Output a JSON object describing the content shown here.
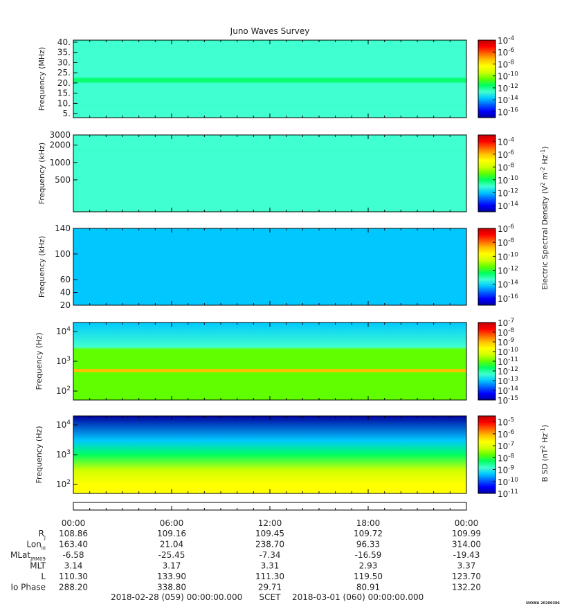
{
  "title": "Juno Waves Survey",
  "footer": {
    "start_time": "2018-02-28 (059) 00:00:00.000",
    "scet": "SCET",
    "end_time": "2018-03-01 (060) 00:00:00.000",
    "stamp": "UIOWA 20200306"
  },
  "colors": {
    "colormap": [
      "#0000a0",
      "#0000ff",
      "#0060ff",
      "#00c8ff",
      "#40ffd0",
      "#00ff60",
      "#60ff00",
      "#d0ff00",
      "#ffff00",
      "#ffc000",
      "#ff6000",
      "#ff0000",
      "#c00000"
    ],
    "panel_background": "#36d9c9"
  },
  "chart_data": [
    {
      "type": "heatmap",
      "panel": "E-field HFR high band",
      "ylabel": "Frequency (MHz)",
      "yticks": [
        "40.",
        "35.",
        "30.",
        "25.",
        "20.",
        "15.",
        "10.",
        "5."
      ],
      "ylim": [
        3,
        41
      ],
      "colorbar": {
        "ticks": [
          "10^-4",
          "10^-6",
          "10^-8",
          "10^-10",
          "10^-12",
          "10^-14",
          "10^-16"
        ],
        "range": [
          -17,
          -4
        ]
      },
      "dominant_log10_value": -12.5,
      "bands": [
        {
          "frequency": 21.5,
          "log10_value": -11.2
        },
        {
          "frequency": 8.7,
          "log10_value": -12.8
        }
      ]
    },
    {
      "type": "heatmap",
      "panel": "E-field HFR low band",
      "ylabel": "Frequency (kHz)",
      "yticks": [
        "3000",
        "2000",
        "1000",
        "500"
      ],
      "ylim": [
        140,
        3000
      ],
      "yscale": "log",
      "colorbar": {
        "ticks": [
          "10^-4",
          "10^-6",
          "10^-8",
          "10^-10",
          "10^-12",
          "10^-14"
        ],
        "range": [
          -15,
          -3
        ]
      },
      "dominant_log10_value": -11.2,
      "bands": [
        {
          "frequency": 1700,
          "log10_value": -10.6
        }
      ]
    },
    {
      "type": "heatmap",
      "panel": "E-field LFR high",
      "ylabel": "Frequency (kHz)",
      "yticks": [
        "140",
        "100",
        "60",
        "40",
        "20"
      ],
      "ylim": [
        20,
        140
      ],
      "colorbar": {
        "ticks": [
          "10^-6",
          "10^-8",
          "10^-10",
          "10^-12",
          "10^-14",
          "10^-16"
        ],
        "range": [
          -17,
          -6
        ]
      },
      "dominant_log10_value": -14.5,
      "colorbar_label": "Electric Spectral Density (V^2 m^-2 Hz^-1)"
    },
    {
      "type": "heatmap",
      "panel": "E-field LFR low",
      "ylabel": "Frequency (Hz)",
      "yticks": [
        "10^4",
        "10^3",
        "10^2"
      ],
      "ylim": [
        50,
        20000
      ],
      "yscale": "log",
      "colorbar": {
        "ticks": [
          "10^-7",
          "10^-8",
          "10^-9",
          "10^-10",
          "10^-11",
          "10^-12",
          "10^-13",
          "10^-14",
          "10^-15"
        ],
        "range": [
          -15,
          -7
        ]
      },
      "features": [
        {
          "name": "upper",
          "frequency_range": [
            3000,
            20000
          ],
          "log10_value": -13.2
        },
        {
          "name": "lower",
          "frequency_range": [
            50,
            3000
          ],
          "log10_value": -11.0
        },
        {
          "name": "band",
          "frequency": 500,
          "log10_value": -9.0
        }
      ]
    },
    {
      "type": "heatmap",
      "panel": "B-field",
      "ylabel": "Frequency (Hz)",
      "yticks": [
        "10^4",
        "10^3",
        "10^2"
      ],
      "ylim": [
        50,
        20000
      ],
      "yscale": "log",
      "colorbar": {
        "ticks": [
          "10^-5",
          "10^-6",
          "10^-7",
          "10^-8",
          "10^-9",
          "10^-10",
          "10^-11"
        ],
        "range": [
          -11,
          -4.5
        ]
      },
      "colorbar_label": "B SD (nT^2 Hz^-1)",
      "profile": [
        {
          "frequency": 20000,
          "log10_value": -10.8
        },
        {
          "frequency": 3000,
          "log10_value": -9.5
        },
        {
          "frequency": 1000,
          "log10_value": -8.3
        },
        {
          "frequency": 300,
          "log10_value": -7.4
        },
        {
          "frequency": 100,
          "log10_value": -6.4
        }
      ]
    }
  ],
  "time_axis": {
    "labels": [
      "00:00",
      "06:00",
      "12:00",
      "18:00",
      "00:00"
    ]
  },
  "ephemeris": [
    {
      "label": "R",
      "sub": "J",
      "values": [
        "108.86",
        "109.16",
        "109.45",
        "109.72",
        "109.99"
      ]
    },
    {
      "label": "Lon",
      "sub": "III",
      "values": [
        "163.40",
        "21.04",
        "238.70",
        "96.33",
        "314.00"
      ]
    },
    {
      "label": "MLat",
      "sub": "JRM09",
      "values": [
        "-6.58",
        "-25.45",
        "-7.34",
        "-16.59",
        "-19.43"
      ]
    },
    {
      "label": "MLT",
      "sub": "",
      "values": [
        "3.14",
        "3.17",
        "3.31",
        "2.93",
        "3.37"
      ]
    },
    {
      "label": "L",
      "sub": "",
      "values": [
        "110.30",
        "133.90",
        "111.30",
        "119.50",
        "123.70"
      ]
    },
    {
      "label": "Io Phase",
      "sub": "",
      "values": [
        "288.20",
        "338.80",
        "29.71",
        "80.91",
        "132.20"
      ]
    }
  ]
}
